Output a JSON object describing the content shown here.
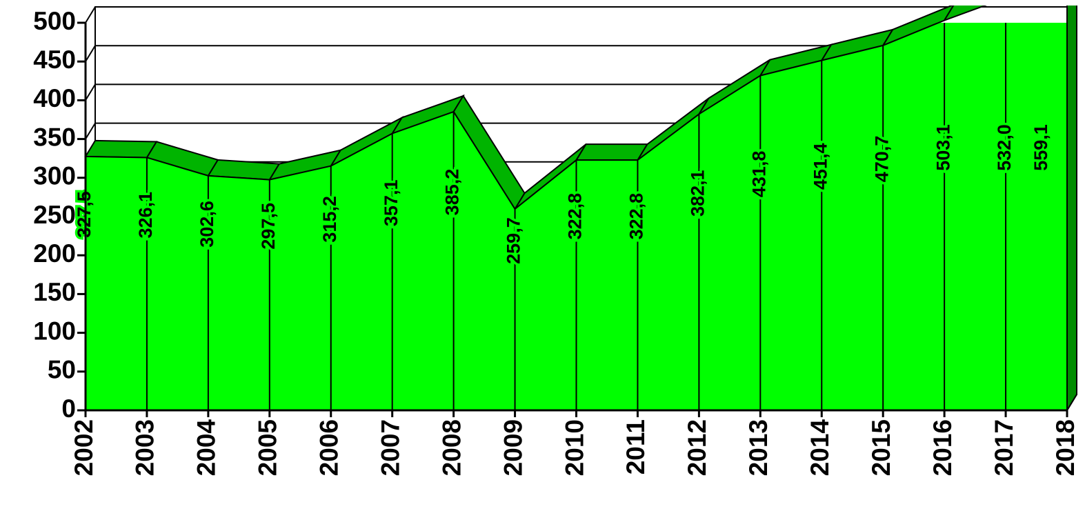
{
  "chart_data": {
    "type": "area",
    "categories": [
      "2002",
      "2003",
      "2004",
      "2005",
      "2006",
      "2007",
      "2008",
      "2009",
      "2010",
      "2011",
      "2012",
      "2013",
      "2014",
      "2015",
      "2016",
      "2017",
      "2018"
    ],
    "values": [
      327.5,
      326.1,
      302.6,
      297.5,
      315.2,
      357.1,
      385.2,
      259.7,
      322.8,
      322.8,
      382.1,
      431.8,
      451.4,
      470.7,
      503.1,
      532.0,
      559.1
    ],
    "value_labels": [
      "327,5",
      "326,1",
      "302,6",
      "297,5",
      "315,2",
      "357,1",
      "385,2",
      "259,7",
      "322,8",
      "322,8",
      "382,1",
      "431,8",
      "451,4",
      "470,7",
      "503,1",
      "532,0",
      "559,1"
    ],
    "color": "#00ff00",
    "ylim": [
      0,
      500
    ],
    "yticks": [
      0,
      50,
      100,
      150,
      200,
      250,
      300,
      350,
      400,
      450,
      500
    ],
    "grid": true
  }
}
